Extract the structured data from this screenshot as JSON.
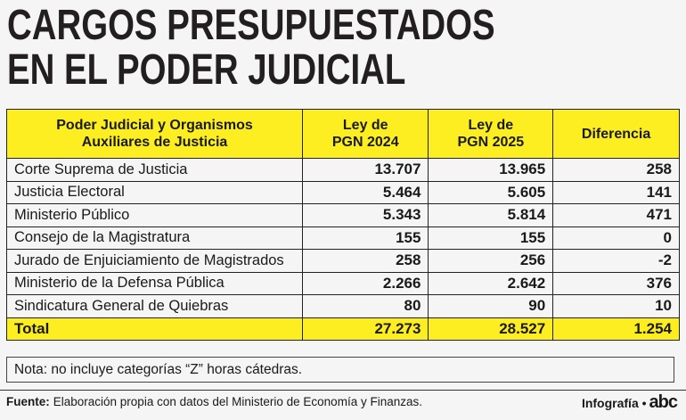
{
  "header": {
    "title_lines": [
      "CARGOS PRESUPUESTADOS",
      "EN EL PODER JUDICIAL"
    ]
  },
  "table": {
    "columns": [
      [
        "Poder Judicial y Organismos",
        "Auxiliares de Justicia"
      ],
      [
        "Ley de",
        "PGN 2024"
      ],
      [
        "Ley de",
        "PGN 2025"
      ],
      [
        "Diferencia"
      ]
    ],
    "rows": [
      [
        "Corte Suprema de Justicia",
        "13.707",
        "13.965",
        "258"
      ],
      [
        "Justicia Electoral",
        "5.464",
        "5.605",
        "141"
      ],
      [
        "Ministerio Público",
        "5.343",
        "5.814",
        "471"
      ],
      [
        "Consejo de la Magistratura",
        "155",
        "155",
        "0"
      ],
      [
        "Jurado de Enjuiciamiento de Magistrados",
        "258",
        "256",
        "-2"
      ],
      [
        "Ministerio de la Defensa Pública",
        "2.266",
        "2.642",
        "376"
      ],
      [
        "Sindicatura General de Quiebras",
        "80",
        "90",
        "10"
      ]
    ],
    "total": [
      "Total",
      "27.273",
      "28.527",
      "1.254"
    ]
  },
  "note": "Nota: no incluye categorías “Z” horas cátedras.",
  "footer": {
    "source_label": "Fuente:",
    "source_text": "Elaboración propia con datos del Ministerio de Economía y Finanzas.",
    "credit": "Infografía •",
    "brand": "abc"
  }
}
